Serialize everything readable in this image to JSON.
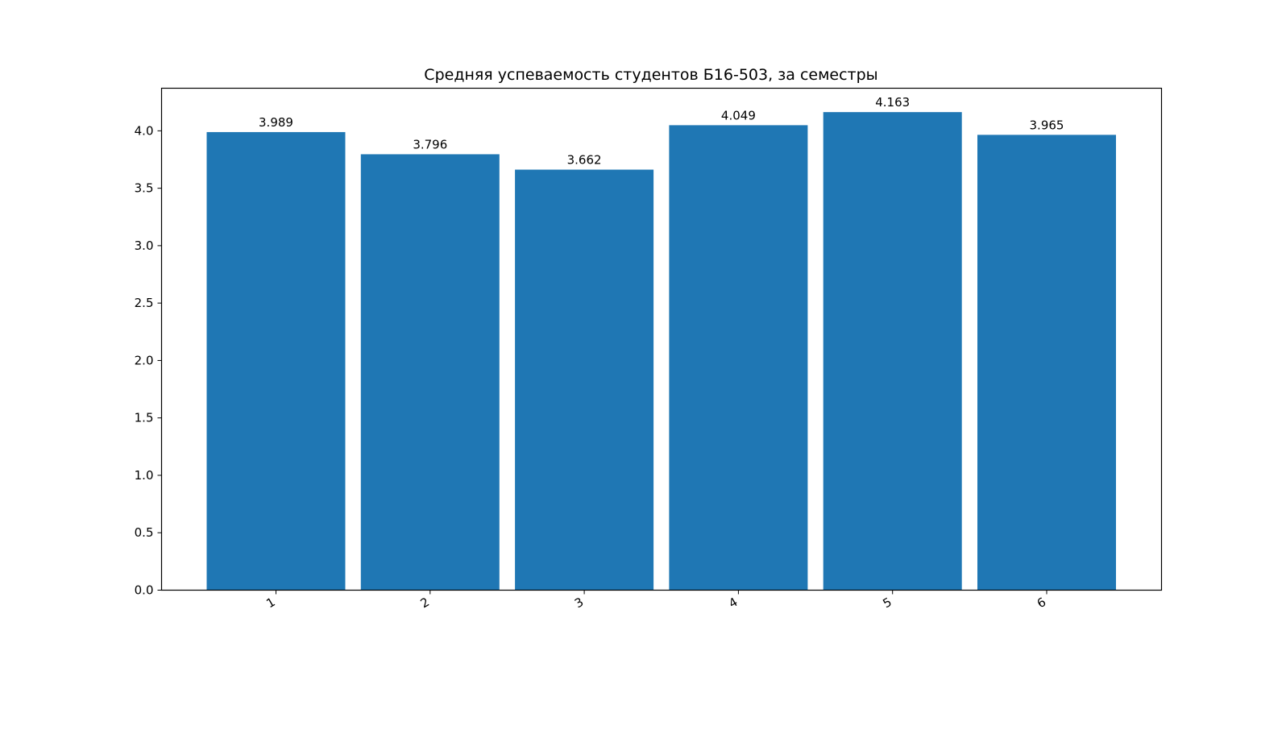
{
  "chart_data": {
    "type": "bar",
    "title": "Средняя успеваемость студентов Б16-503, за семестры",
    "xlabel": "",
    "ylabel": "",
    "categories": [
      "1",
      "2",
      "3",
      "4",
      "5",
      "6"
    ],
    "values": [
      3.989,
      3.796,
      3.662,
      4.049,
      4.163,
      3.965
    ],
    "value_labels": [
      "3.989",
      "3.796",
      "3.662",
      "4.049",
      "4.163",
      "3.965"
    ],
    "yticks": [
      0.0,
      0.5,
      1.0,
      1.5,
      2.0,
      2.5,
      3.0,
      3.5,
      4.0
    ],
    "ytick_labels": [
      "0.0",
      "0.5",
      "1.0",
      "1.5",
      "2.0",
      "2.5",
      "3.0",
      "3.5",
      "4.0"
    ],
    "ylim": [
      0,
      4.371
    ],
    "grid": false,
    "legend": "none",
    "colors": {
      "bar": "#1f77b4",
      "axis": "#000000",
      "background": "#ffffff"
    }
  }
}
